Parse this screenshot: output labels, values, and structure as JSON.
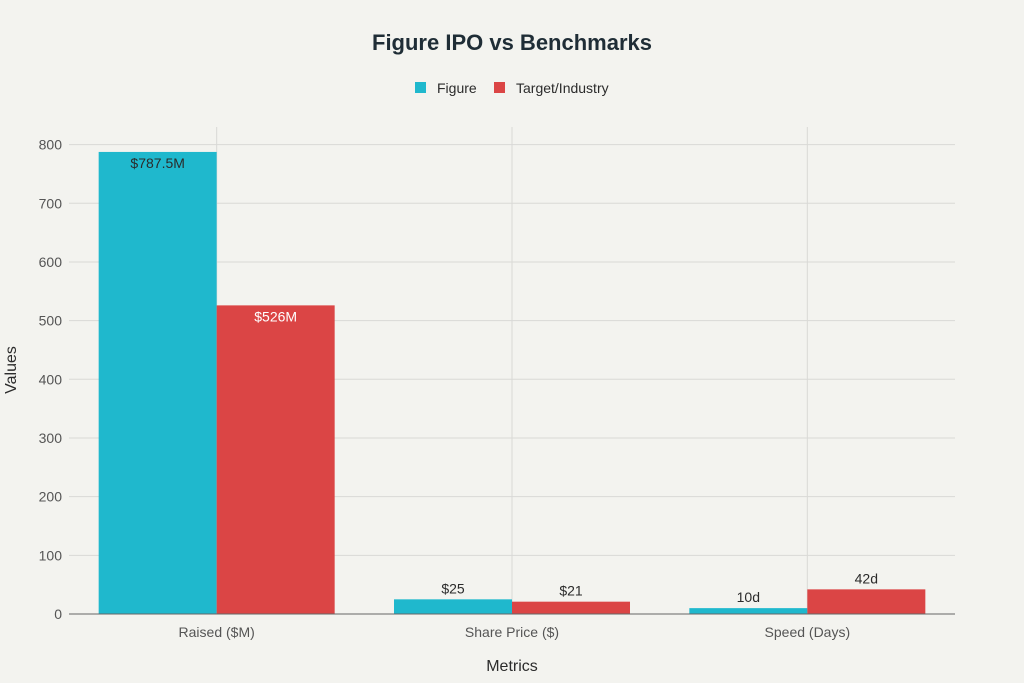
{
  "chart_data": {
    "type": "bar",
    "title": "Figure IPO vs Benchmarks",
    "xlabel": "Metrics",
    "ylabel": "Values",
    "categories": [
      "Raised ($M)",
      "Share Price ($)",
      "Speed (Days)"
    ],
    "series": [
      {
        "name": "Figure",
        "color": "#1fb8cd",
        "values": [
          787.5,
          25,
          10
        ],
        "labels": [
          "$787.5M",
          "$25",
          "10d"
        ]
      },
      {
        "name": "Target/Industry",
        "color": "#db4545",
        "values": [
          526,
          21,
          42
        ],
        "labels": [
          "$526M",
          "$21",
          "42d"
        ]
      }
    ],
    "ylim": [
      0,
      830
    ],
    "yticks": [
      0,
      100,
      200,
      300,
      400,
      500,
      600,
      700,
      800
    ],
    "grid": true,
    "legend_position": "top-center"
  }
}
